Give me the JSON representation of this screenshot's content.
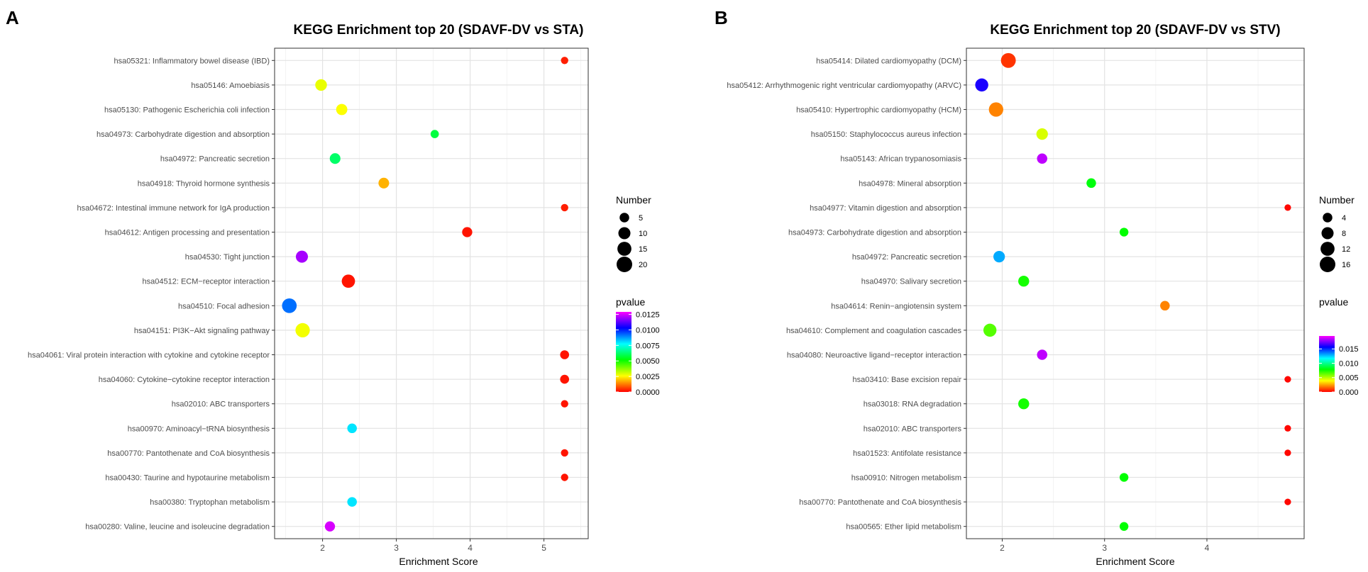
{
  "panels": [
    {
      "letter": "A"
    },
    {
      "letter": "B"
    }
  ],
  "chart_data": [
    {
      "type": "scatter",
      "panel": "A",
      "title": "KEGG Enrichment top 20 (SDAVF-DV vs STA)",
      "xlabel": "Enrichment Score",
      "ylabel": "",
      "xlim": [
        1.35,
        5.6
      ],
      "xticks": [
        2,
        3,
        4,
        5
      ],
      "grid": true,
      "categories": [
        "hsa05321: Inflammatory bowel disease (IBD)",
        "hsa05146: Amoebiasis",
        "hsa05130: Pathogenic Escherichia coli infection",
        "hsa04973: Carbohydrate digestion and absorption",
        "hsa04972: Pancreatic secretion",
        "hsa04918: Thyroid hormone synthesis",
        "hsa04672: Intestinal immune network for IgA production",
        "hsa04612: Antigen processing and presentation",
        "hsa04530: Tight junction",
        "hsa04512: ECM−receptor interaction",
        "hsa04510: Focal adhesion",
        "hsa04151: PI3K−Akt signaling pathway",
        "hsa04061: Viral protein interaction with cytokine and cytokine receptor",
        "hsa04060: Cytokine−cytokine receptor interaction",
        "hsa02010: ABC transporters",
        "hsa00970: Aminoacyl−tRNA biosynthesis",
        "hsa00770: Pantothenate and CoA biosynthesis",
        "hsa00430: Taurine and hypotaurine metabolism",
        "hsa00380: Tryptophan metabolism",
        "hsa00280: Valine, leucine and isoleucine degradation"
      ],
      "enrichment_score": [
        5.28,
        1.98,
        2.26,
        3.52,
        2.17,
        2.83,
        5.28,
        3.96,
        1.72,
        2.35,
        1.55,
        1.73,
        5.28,
        5.28,
        5.28,
        2.4,
        5.28,
        5.28,
        2.4,
        2.1
      ],
      "number": [
        2,
        9,
        8,
        3,
        7,
        7,
        2,
        6,
        10,
        13,
        17,
        16,
        4,
        4,
        2,
        5,
        2,
        2,
        5,
        6
      ],
      "pvalue": [
        0.0003,
        0.0028,
        0.0026,
        0.0058,
        0.0062,
        0.0018,
        0.0003,
        0.0002,
        0.012,
        0.0002,
        0.0092,
        0.0027,
        0.0002,
        0.0002,
        0.0002,
        0.008,
        0.0002,
        0.0002,
        0.008,
        0.0125
      ],
      "size_legend": {
        "title": "Number",
        "values": [
          5,
          10,
          15,
          20
        ]
      },
      "color_legend": {
        "title": "pvalue",
        "min": 0.0,
        "max": 0.0129,
        "ticks": [
          0.0125,
          0.01,
          0.0075,
          0.005,
          0.0025,
          0.0
        ],
        "tick_labels": [
          "0.0125",
          "0.0100",
          "0.0075",
          "0.0050",
          "0.0025",
          "0.0000"
        ]
      }
    },
    {
      "type": "scatter",
      "panel": "B",
      "title": "KEGG Enrichment top 20 (SDAVF-DV vs STV)",
      "xlabel": "Enrichment Score",
      "ylabel": "",
      "xlim": [
        1.65,
        4.95
      ],
      "xticks": [
        2,
        3,
        4
      ],
      "grid": true,
      "categories": [
        "hsa05414: Dilated cardiomyopathy (DCM)",
        "hsa05412: Arrhythmogenic right ventricular cardiomyopathy (ARVC)",
        "hsa05410: Hypertrophic cardiomyopathy (HCM)",
        "hsa05150: Staphylococcus aureus infection",
        "hsa05143: African trypanosomiasis",
        "hsa04978: Mineral absorption",
        "hsa04977: Vitamin digestion and absorption",
        "hsa04973: Carbohydrate digestion and absorption",
        "hsa04972: Pancreatic secretion",
        "hsa04970: Salivary secretion",
        "hsa04614: Renin−angiotensin system",
        "hsa04610: Complement and coagulation cascades",
        "hsa04080: Neuroactive ligand−receptor interaction",
        "hsa03410: Base excision repair",
        "hsa03018: RNA degradation",
        "hsa02010: ABC transporters",
        "hsa01523: Antifolate resistance",
        "hsa00910: Nitrogen metabolism",
        "hsa00770: Pantothenate and CoA biosynthesis",
        "hsa00565: Ether lipid metabolism"
      ],
      "enrichment_score": [
        2.06,
        1.8,
        1.94,
        2.39,
        2.39,
        2.87,
        4.79,
        3.19,
        1.97,
        2.21,
        3.59,
        1.88,
        2.39,
        4.79,
        2.21,
        4.79,
        4.79,
        3.19,
        4.79,
        3.19
      ],
      "number": [
        14,
        10,
        13,
        7,
        5,
        4,
        1,
        3,
        7,
        6,
        4,
        10,
        5,
        1,
        6,
        1,
        1,
        3,
        1,
        3
      ],
      "pvalue": [
        0.0008,
        0.016,
        0.002,
        0.0045,
        0.0185,
        0.008,
        0.0001,
        0.0078,
        0.013,
        0.0075,
        0.002,
        0.0065,
        0.0185,
        0.0001,
        0.0075,
        0.0001,
        0.0001,
        0.0078,
        0.0001,
        0.0078
      ],
      "size_legend": {
        "title": "Number",
        "values": [
          4,
          8,
          12,
          16
        ]
      },
      "color_legend": {
        "title": "pvalue",
        "min": 0.0,
        "max": 0.0195,
        "ticks": [
          0.015,
          0.01,
          0.005,
          0.0
        ],
        "tick_labels": [
          "0.015",
          "0.010",
          "0.005",
          "0.000"
        ]
      }
    }
  ]
}
